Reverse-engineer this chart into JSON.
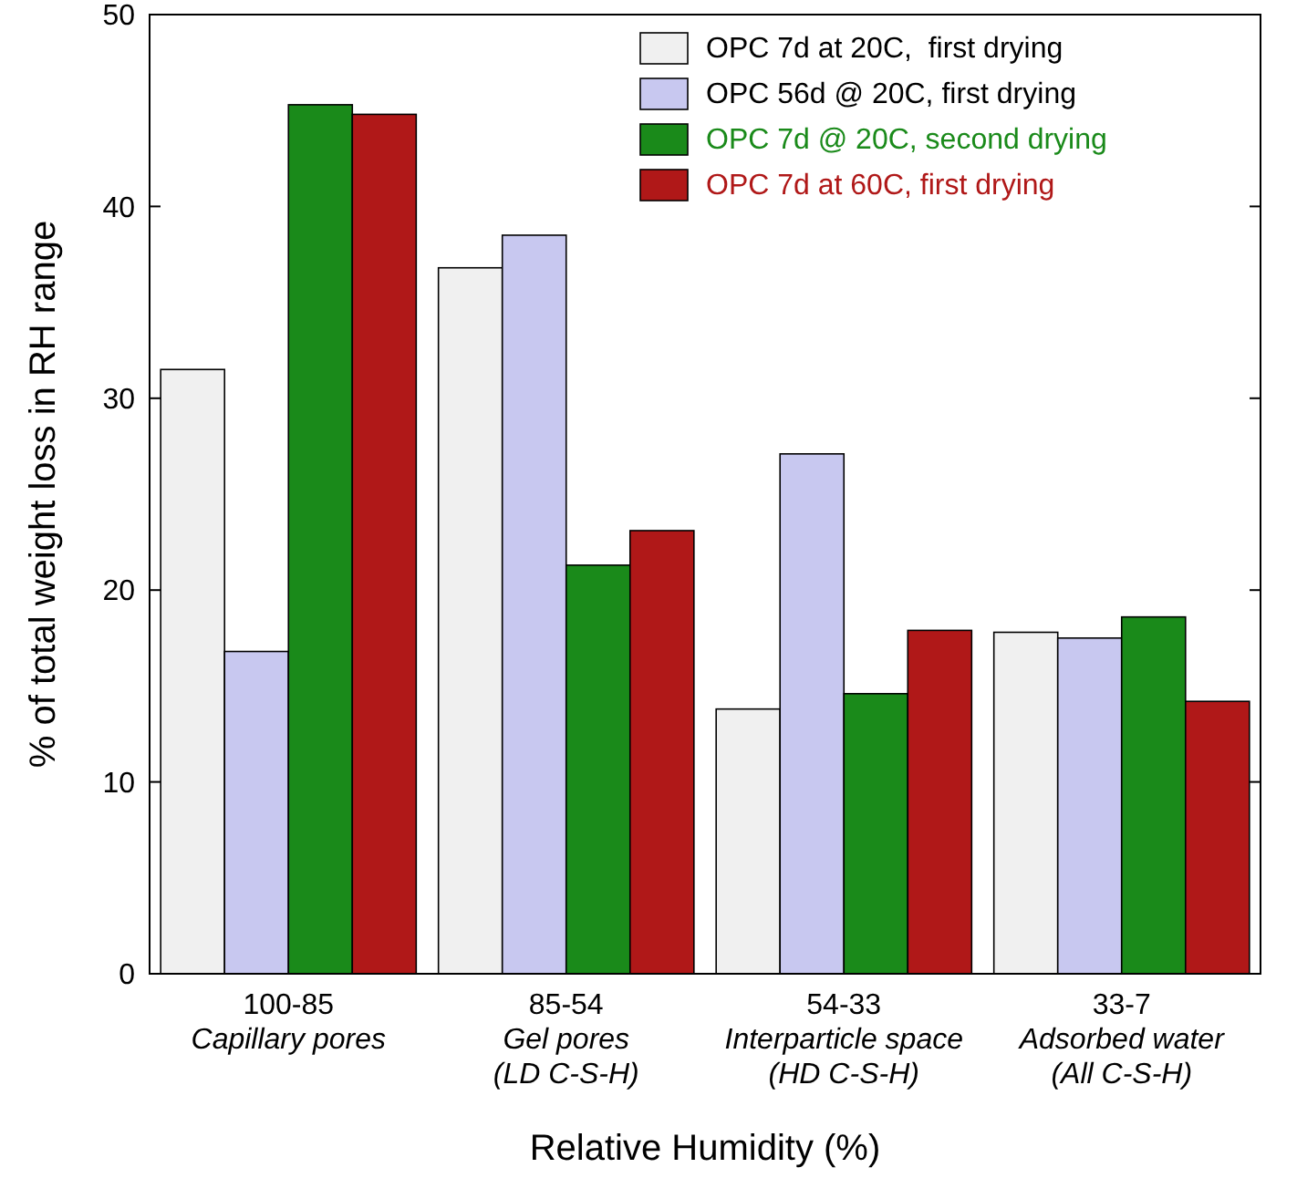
{
  "chart_data": {
    "type": "bar",
    "xlabel": "Relative Humidity (%)",
    "ylabel": "% of total weight loss in RH range",
    "categories": [
      "100-85\nCapillary pores",
      "85-54\nGel pores\n(LD C-S-H)",
      "54-33\nInterparticle space\n(HD C-S-H)",
      "33-7\nAdsorbed water\n(All C-S-H)"
    ],
    "series": [
      {
        "name": "OPC 7d at 20C,  first drying",
        "color": "#f0f0f0",
        "values": [
          31.5,
          36.8,
          13.8,
          17.8
        ]
      },
      {
        "name": "OPC 56d @ 20C, first drying",
        "color": "#c8c8f0",
        "values": [
          16.8,
          38.5,
          27.1,
          17.5
        ]
      },
      {
        "name": "OPC 7d @ 20C, second drying",
        "color": "#1a8a1a",
        "values": [
          45.3,
          21.3,
          14.6,
          18.6
        ]
      },
      {
        "name": "OPC 7d at 60C, first drying",
        "color": "#b01818",
        "values": [
          44.8,
          23.1,
          17.9,
          14.2
        ]
      }
    ],
    "ylim": [
      0,
      50
    ],
    "yticks": [
      0,
      10,
      20,
      30,
      40,
      50
    ],
    "legend": "top right"
  }
}
